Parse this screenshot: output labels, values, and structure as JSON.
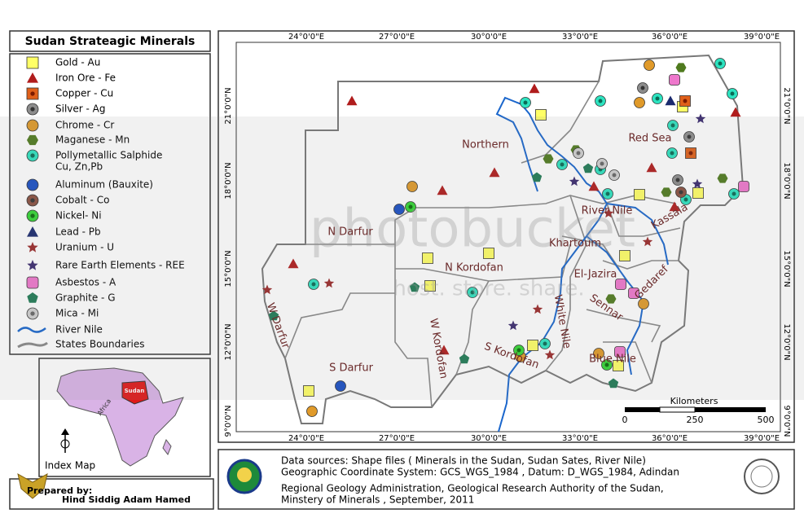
{
  "title": "Sudan Strateagic Minerals",
  "legend": {
    "items": [
      {
        "label": "Gold - Au",
        "color": "#ffff66"
      },
      {
        "label": "Iron Ore - Fe",
        "color": "#b01c1c"
      },
      {
        "label": "Copper - Cu",
        "color": "#e0601a"
      },
      {
        "label": "Silver - Ag",
        "color": "#8c8c8c"
      },
      {
        "label": "Chrome - Cr",
        "color": "#e09a2a"
      },
      {
        "label": "Maganese - Mn",
        "color": "#4f7a1e"
      },
      {
        "label": "Pollymetallic Salphide",
        "sublabel": "Cu, Zn,Pb",
        "color": "#2de3c0"
      },
      {
        "label": "Aluminum (Bauxite)",
        "color": "#1a4fc4"
      },
      {
        "label": "Cobalt - Co",
        "color": "#8a5040"
      },
      {
        "label": "Nickel- Ni",
        "color": "#33d633"
      },
      {
        "label": "Lead - Pb",
        "color": "#1a2a6e"
      },
      {
        "label": "Uranium - U",
        "color": "#9a2a2a"
      },
      {
        "label": "Rare Earth Elements - REE",
        "color": "#3a2a6e"
      },
      {
        "label": "Asbestos - A",
        "color": "#ee77cc"
      },
      {
        "label": "Graphite - G",
        "color": "#1f7a55"
      },
      {
        "label": "Mica - Mi",
        "color": "#cfcfcf"
      },
      {
        "label": "River Nile",
        "color": "#1a66cc"
      },
      {
        "label": "States Boundaries",
        "color": "#888888"
      }
    ]
  },
  "map": {
    "top_longitudes": [
      "24°0'0\"E",
      "27°0'0\"E",
      "30°0'0\"E",
      "33°0'0\"E",
      "36°0'0\"E",
      "39°0'0\"E"
    ],
    "bottom_longitudes": [
      "24°0'0\"E",
      "27°0'0\"E",
      "30°0'0\"E",
      "33°0'0\"E",
      "36°0'0\"E",
      "39°0'0\"E"
    ],
    "left_latitudes": [
      "21°0'0\"N",
      "18°0'0\"N",
      "15°0'0\"N",
      "12°0'0\"N",
      "9°0'0\"N"
    ],
    "right_latitudes": [
      "21°0'0\"N",
      "18°0'0\"N",
      "15°0'0\"N",
      "12°0'0\"N",
      "9°0'0\"N"
    ],
    "states": [
      "Northern",
      "Red Sea",
      "N Darfur",
      "River Nile",
      "Kassala",
      "Khartoum",
      "N Kordofan",
      "El-Jazira",
      "Gedaref",
      "W Darfur",
      "Sennar",
      "W Kordofan",
      "White Nile",
      "S Kordofan",
      "S Darfur",
      "Blue Nile"
    ],
    "scale_bar": {
      "title": "Kilometers",
      "labels": [
        "0",
        "250",
        "500"
      ]
    }
  },
  "index_map": {
    "title": "Index Map",
    "country": "Sudan",
    "continent": "Africa"
  },
  "credit": {
    "label": "Prepared by:",
    "name": "Hind Siddig Adam Hamed"
  },
  "sources": {
    "lines": [
      "Data sources:  Shape files ( Minerals in the Sudan, Sudan Sates, River Nile)",
      "Geographic Coordinate System: GCS_WGS_1984 , Datum: D_WGS_1984, Adindan",
      "Regional Geology Administration, Geological Research Authority of the Sudan,",
      "Minstery of Minerals , September, 2011"
    ]
  },
  "watermark": {
    "brand": "photobucket",
    "tagline": "host. store. share."
  }
}
